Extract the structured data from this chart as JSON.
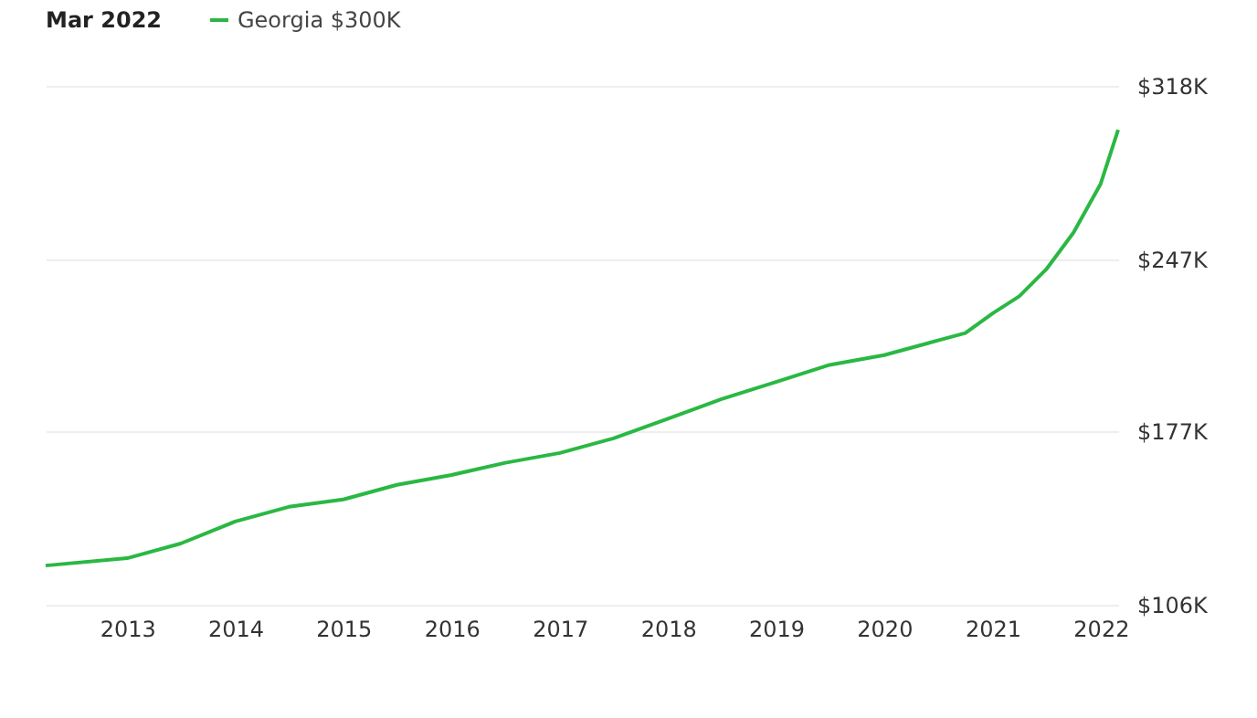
{
  "chart_data": {
    "type": "line",
    "legend_title": "Mar 2022",
    "x": [
      "2012-04",
      "2013-01",
      "2013-07",
      "2014-01",
      "2014-07",
      "2015-01",
      "2015-07",
      "2016-01",
      "2016-07",
      "2017-01",
      "2017-07",
      "2018-01",
      "2018-07",
      "2019-01",
      "2019-07",
      "2020-01",
      "2020-07",
      "2020-10",
      "2021-01",
      "2021-04",
      "2021-07",
      "2021-10",
      "2022-01",
      "2022-03"
    ],
    "series": [
      {
        "name": "Georgia $300K",
        "color": "#2ab843",
        "values": [
          122,
          125,
          131,
          140,
          146,
          149,
          155,
          159,
          164,
          168,
          174,
          182,
          190,
          197,
          204,
          208,
          214,
          217,
          225,
          232,
          243,
          258,
          278,
          300
        ]
      }
    ],
    "xlim": [
      "2012-04",
      "2022-03"
    ],
    "xticks": [
      "2013",
      "2014",
      "2015",
      "2016",
      "2017",
      "2018",
      "2019",
      "2020",
      "2021",
      "2022"
    ],
    "ylim": [
      106,
      318
    ],
    "yticks": [
      {
        "value": 106,
        "label": "$106K"
      },
      {
        "value": 177,
        "label": "$177K"
      },
      {
        "value": 247,
        "label": "$247K"
      },
      {
        "value": 318,
        "label": "$318K"
      }
    ],
    "grid": "y",
    "legend": "top left",
    "marker": "none",
    "line_style": "solid"
  }
}
